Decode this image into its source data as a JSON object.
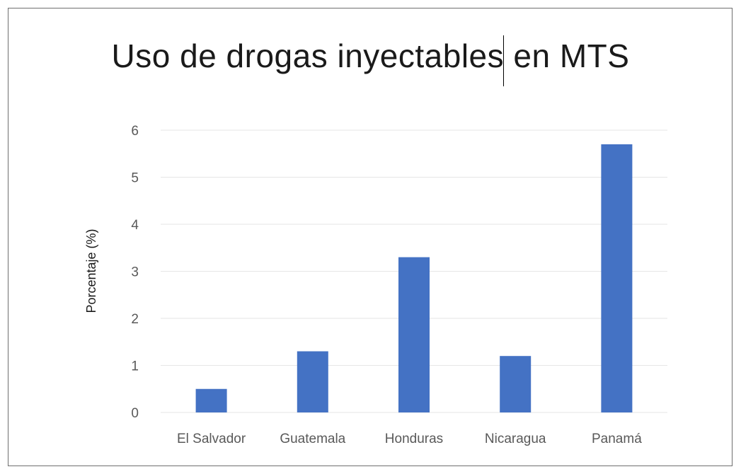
{
  "chart_data": {
    "type": "bar",
    "title": "Uso de drogas inyectables en MTS",
    "xlabel": "",
    "ylabel": "Porcentaje (%)",
    "categories": [
      "El Salvador",
      "Guatemala",
      "Honduras",
      "Nicaragua",
      "Panamá"
    ],
    "values": [
      0.5,
      1.3,
      3.3,
      1.2,
      5.7
    ],
    "ylim": [
      0,
      6
    ],
    "yticks": [
      0,
      1,
      2,
      3,
      4,
      5,
      6
    ],
    "grid": true,
    "legend": "none",
    "bar_color": "#4472C4",
    "grid_color": "#e6e6e6"
  }
}
